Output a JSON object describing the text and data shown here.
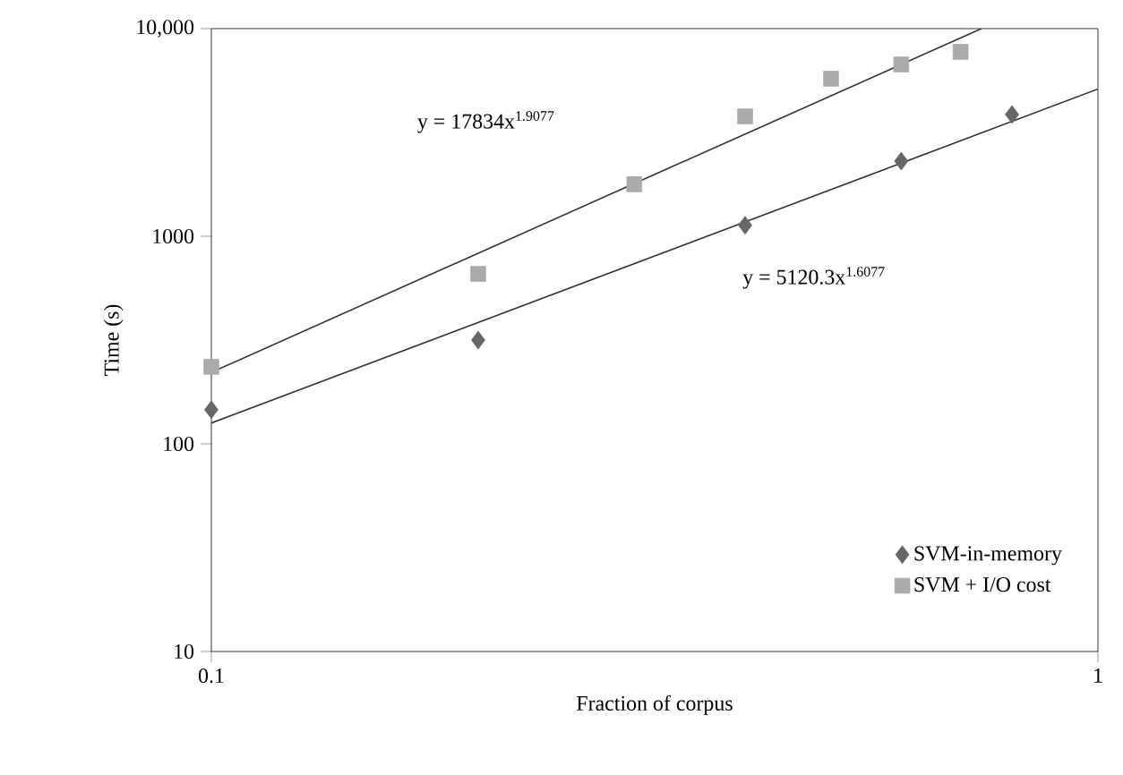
{
  "chart_data": {
    "type": "scatter",
    "xlabel": "Fraction of corpus",
    "ylabel": "Time (s)",
    "log": "xy",
    "xlim": [
      0.1,
      1
    ],
    "ylim": [
      10,
      10000
    ],
    "xticks": [
      0.1,
      1
    ],
    "yticks": [
      10,
      100,
      1000,
      {
        "value": 10000,
        "label": "10,000"
      }
    ],
    "grid": false,
    "legend": "bottom right",
    "series": [
      {
        "name": "SVM-in-memory",
        "color": "#666666",
        "marker": "diamond",
        "x": [
          0.1,
          0.2,
          0.4,
          0.6,
          0.8
        ],
        "values": [
          146,
          316,
          1130,
          2300,
          3860
        ]
      },
      {
        "name": "SVM + I/O cost",
        "color": "#aaaaaa",
        "marker": "square",
        "x": [
          0.1,
          0.2,
          0.3,
          0.4,
          0.5,
          0.6,
          0.7
        ],
        "values": [
          235,
          659,
          1780,
          3780,
          5740,
          6720,
          7730
        ]
      },
      {
        "type": "line",
        "color": "#333333",
        "marker": "none",
        "x": [
          0.1,
          0.739
        ],
        "values": [
          221,
          10000
        ]
      },
      {
        "type": "line",
        "color": "#333333",
        "marker": "none",
        "x": [
          0.1,
          1
        ],
        "values": [
          126,
          5120
        ]
      }
    ],
    "annotations": [
      "y = 17834x$^{1.9077}$",
      "y = 5120.3x$^{1.6077}$"
    ]
  }
}
